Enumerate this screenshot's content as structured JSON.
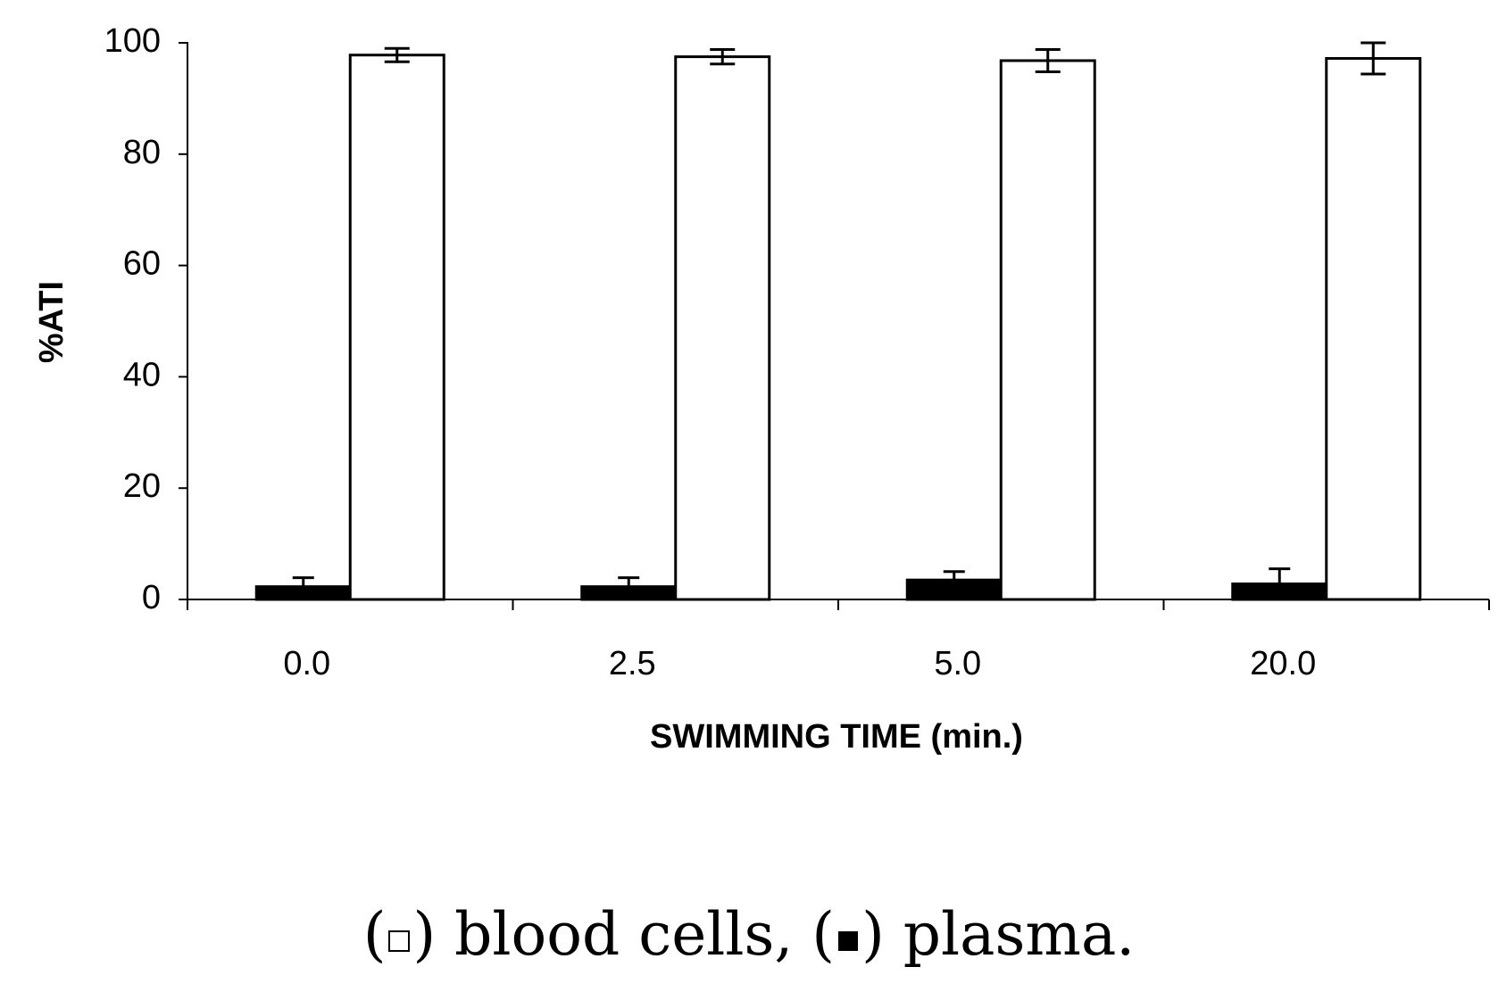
{
  "chart_data": {
    "type": "bar",
    "categories": [
      "0.0",
      "2.5",
      "5.0",
      "20.0"
    ],
    "series": [
      {
        "name": "plasma",
        "fill": "#000000",
        "values": [
          2.3,
          2.3,
          3.5,
          2.8
        ],
        "errors": [
          1.6,
          1.6,
          1.5,
          2.7
        ]
      },
      {
        "name": "blood cells",
        "fill": "#ffffff",
        "values": [
          97.8,
          97.5,
          96.8,
          97.2
        ],
        "errors": [
          1.2,
          1.3,
          2.0,
          2.8
        ]
      }
    ],
    "xlabel": "SWIMMING TIME (min.)",
    "ylabel": "%ATI",
    "ylim": [
      0,
      100
    ],
    "yticks": [
      "0",
      "20",
      "40",
      "60",
      "80",
      "100"
    ],
    "grid": false
  },
  "caption": {
    "open_paren_1": "(",
    "blood_cells_text": ") blood cells, (",
    "plasma_text": ") plasma."
  }
}
